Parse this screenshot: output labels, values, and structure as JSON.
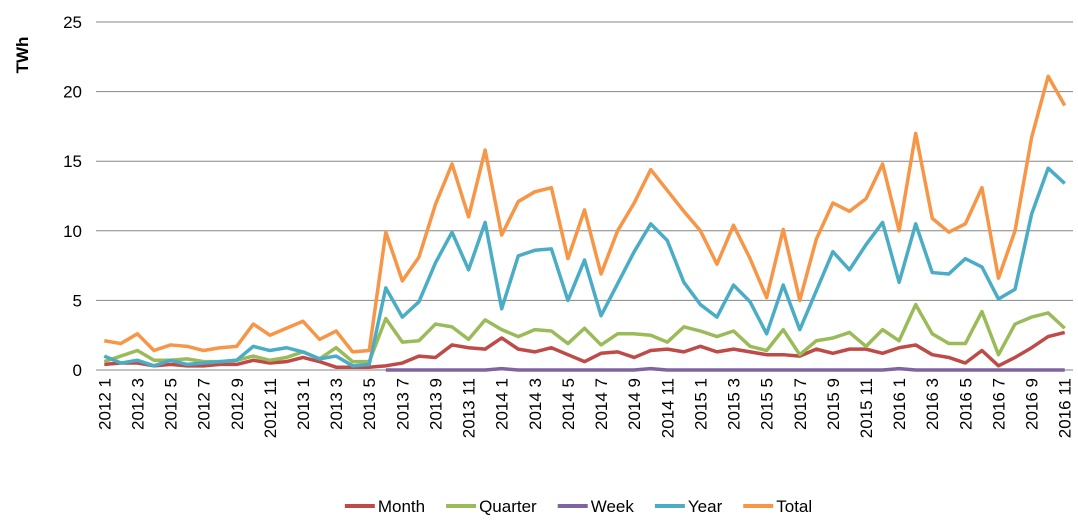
{
  "chart_data": {
    "type": "line",
    "y_label": "TWh",
    "categories": [
      "2012 1",
      null,
      "2012 3",
      null,
      "2012 5",
      null,
      "2012 7",
      null,
      "2012 9",
      null,
      "2012 11",
      null,
      "2013 1",
      null,
      "2013 3",
      null,
      "2013 5",
      null,
      "2013 7",
      null,
      "2013 9",
      null,
      "2013 11",
      null,
      "2014 1",
      null,
      "2014 3",
      null,
      "2014 5",
      null,
      "2014 7",
      null,
      "2014 9",
      null,
      "2014 11",
      null,
      "2015 1",
      null,
      "2015 3",
      null,
      "2015 5",
      null,
      "2015 7",
      null,
      "2015 9",
      null,
      "2015 11",
      null,
      "2016 1",
      null,
      "2016 3",
      null,
      "2016 5",
      null,
      "2016 7",
      null,
      "2016 9",
      null,
      "2016 11"
    ],
    "series": [
      {
        "name": "Month",
        "color": "#be4b48",
        "values": [
          0.4,
          0.5,
          0.5,
          0.3,
          0.4,
          0.3,
          0.3,
          0.4,
          0.4,
          0.7,
          0.5,
          0.6,
          0.9,
          0.6,
          0.2,
          0.2,
          0.2,
          0.3,
          0.5,
          1.0,
          0.9,
          1.8,
          1.6,
          1.5,
          2.3,
          1.5,
          1.3,
          1.6,
          1.1,
          0.6,
          1.2,
          1.3,
          0.9,
          1.4,
          1.5,
          1.3,
          1.7,
          1.3,
          1.5,
          1.3,
          1.1,
          1.1,
          1.0,
          1.5,
          1.2,
          1.5,
          1.5,
          1.2,
          1.6,
          1.8,
          1.1,
          0.9,
          0.5,
          1.4,
          0.3,
          0.9,
          1.6,
          2.4,
          2.7
        ]
      },
      {
        "name": "Quarter",
        "color": "#9bbb59",
        "values": [
          0.6,
          1.0,
          1.4,
          0.7,
          0.7,
          0.8,
          0.6,
          0.6,
          0.7,
          1.0,
          0.7,
          0.9,
          1.3,
          0.8,
          1.6,
          0.6,
          0.6,
          3.7,
          2.0,
          2.1,
          3.3,
          3.1,
          2.2,
          3.6,
          2.9,
          2.4,
          2.9,
          2.8,
          1.9,
          3.0,
          1.8,
          2.6,
          2.6,
          2.5,
          2.0,
          3.1,
          2.8,
          2.4,
          2.8,
          1.7,
          1.4,
          2.9,
          1.1,
          2.1,
          2.3,
          2.7,
          1.7,
          2.9,
          2.1,
          4.7,
          2.6,
          1.9,
          1.9,
          4.2,
          1.1,
          3.3,
          3.8,
          4.1,
          3.0
        ]
      },
      {
        "name": "Week",
        "color": "#8064a2",
        "values": [
          null,
          null,
          null,
          null,
          null,
          null,
          null,
          null,
          null,
          null,
          null,
          null,
          null,
          null,
          null,
          null,
          null,
          0,
          0,
          0,
          0,
          0,
          0,
          0,
          0.1,
          0,
          0,
          0,
          0,
          0,
          0,
          0,
          0,
          0.1,
          0,
          0,
          0,
          0,
          0,
          0,
          0,
          0,
          0,
          0,
          0,
          0,
          0,
          0,
          0.1,
          0,
          0,
          0,
          0,
          0,
          0,
          0,
          0,
          0,
          0
        ]
      },
      {
        "name": "Year",
        "color": "#4bacc6",
        "values": [
          1.0,
          0.5,
          0.7,
          0.3,
          0.7,
          0.4,
          0.5,
          0.6,
          0.7,
          1.7,
          1.4,
          1.6,
          1.3,
          0.8,
          1.0,
          0.3,
          0.4,
          5.9,
          3.8,
          4.9,
          7.7,
          9.9,
          7.2,
          10.6,
          4.4,
          8.2,
          8.6,
          8.7,
          5.0,
          7.9,
          3.9,
          6.2,
          8.5,
          10.5,
          9.3,
          6.3,
          4.7,
          3.8,
          6.1,
          4.9,
          2.6,
          6.1,
          2.9,
          5.7,
          8.5,
          7.2,
          9.0,
          10.6,
          6.3,
          10.5,
          7.0,
          6.9,
          8.0,
          7.4,
          5.1,
          5.8,
          11.2,
          14.5,
          13.4
        ]
      },
      {
        "name": "Total",
        "color": "#f79646",
        "values": [
          2.1,
          1.9,
          2.6,
          1.4,
          1.8,
          1.7,
          1.4,
          1.6,
          1.7,
          3.3,
          2.5,
          3.0,
          3.5,
          2.2,
          2.8,
          1.3,
          1.4,
          9.9,
          6.4,
          8.1,
          11.9,
          14.8,
          11.0,
          15.8,
          9.7,
          12.1,
          12.8,
          13.1,
          8.0,
          11.5,
          6.9,
          10.0,
          12.0,
          14.4,
          12.9,
          11.4,
          10.0,
          7.6,
          10.4,
          8.0,
          5.2,
          10.1,
          5.0,
          9.4,
          12.0,
          11.4,
          12.3,
          14.8,
          10.0,
          17.0,
          10.9,
          9.9,
          10.5,
          13.1,
          6.6,
          10.0,
          16.7,
          21.1,
          19.0
        ]
      }
    ],
    "ylim": [
      0,
      25
    ],
    "yticks": [
      0,
      5,
      10,
      15,
      20,
      25
    ],
    "grid": true,
    "legend": "bottom"
  }
}
